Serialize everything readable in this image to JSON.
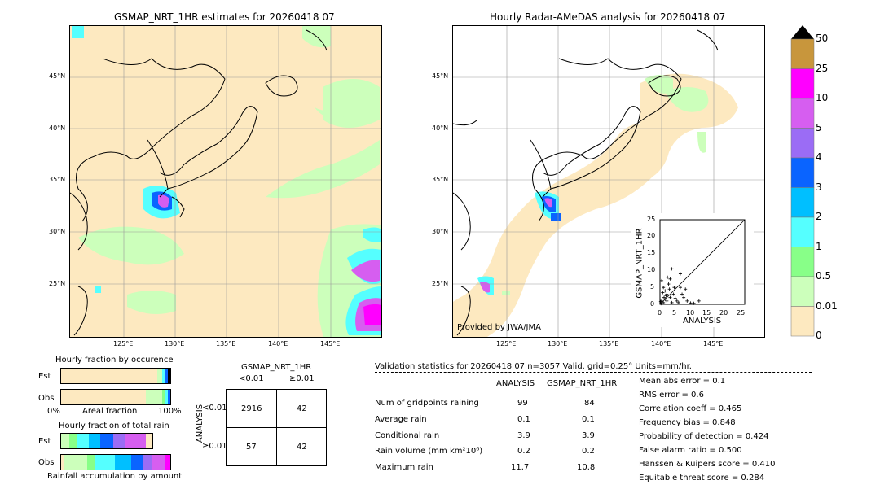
{
  "left_map": {
    "title": "GSMAP_NRT_1HR estimates for 20260418 07",
    "lat_labels": [
      "45°N",
      "40°N",
      "35°N",
      "30°N",
      "25°N"
    ],
    "lon_labels": [
      "125°E",
      "130°E",
      "135°E",
      "140°E",
      "145°E"
    ]
  },
  "right_map": {
    "title": "Hourly Radar-AMeDAS analysis for 20260418 07",
    "lat_labels": [
      "45°N",
      "40°N",
      "35°N",
      "30°N",
      "25°N"
    ],
    "lon_labels": [
      "125°E",
      "130°E",
      "135°E",
      "140°E",
      "145°E"
    ],
    "provided_by": "Provided by JWA/JMA"
  },
  "colorbar": {
    "levels": [
      "50",
      "25",
      "10",
      "5",
      "4",
      "3",
      "2",
      "1",
      "0.5",
      "0.01",
      "0"
    ],
    "colors": [
      "#c8963c",
      "#ff00ff",
      "#d65ef0",
      "#9b6cf5",
      "#0a64ff",
      "#00bfff",
      "#55ffff",
      "#88ff88",
      "#ccffbb",
      "#fde9c0"
    ]
  },
  "scatter": {
    "xlabel": "ANALYSIS",
    "ylabel": "GSMAP_NRT_1HR",
    "ticks": [
      "0",
      "5",
      "10",
      "15",
      "20",
      "25"
    ]
  },
  "fraction_occurrence": {
    "title": "Hourly fraction by occurence",
    "rows": [
      "Est",
      "Obs"
    ],
    "x_left": "0%",
    "x_mid": "Areal fraction",
    "x_right": "100%"
  },
  "fraction_total": {
    "title": "Hourly fraction of total rain",
    "rows": [
      "Est",
      "Obs"
    ],
    "footer": "Rainfall accumulation by amount"
  },
  "contingency": {
    "title": "GSMAP_NRT_1HR",
    "col_labels": [
      "<0.01",
      "≥0.01"
    ],
    "row_axis": "ANALYSIS",
    "row_labels": [
      "<0.01",
      "≥0.01"
    ],
    "cells": [
      [
        "2916",
        "42"
      ],
      [
        "57",
        "42"
      ]
    ]
  },
  "validation": {
    "header": "Validation statistics for 20260418 07  n=3057 Valid. grid=0.25° Units=mm/hr.",
    "col_analysis": "ANALYSIS",
    "col_gsmap": "GSMAP_NRT_1HR",
    "rows": [
      {
        "label": "Num of gridpoints raining",
        "analysis": "99",
        "gsmap": "84"
      },
      {
        "label": "Average rain",
        "analysis": "0.1",
        "gsmap": "0.1"
      },
      {
        "label": "Conditional rain",
        "analysis": "3.9",
        "gsmap": "3.9"
      },
      {
        "label": "Rain volume (mm km²10⁶)",
        "analysis": "0.2",
        "gsmap": "0.2"
      },
      {
        "label": "Maximum rain",
        "analysis": "11.7",
        "gsmap": "10.8"
      }
    ],
    "scores": [
      "Mean abs error =    0.1",
      "RMS error =    0.6",
      "Correlation coeff =  0.465",
      "Frequency bias =  0.848",
      "Probability of detection =  0.424",
      "False alarm ratio =  0.500",
      "Hanssen & Kuipers score =  0.410",
      "Equitable threat score =  0.284"
    ]
  },
  "chart_data": [
    {
      "type": "heatmap",
      "title": "GSMAP_NRT_1HR estimates for 20260418 07",
      "xlabel": "",
      "ylabel": "",
      "x_ticks": [
        "125°E",
        "130°E",
        "135°E",
        "140°E",
        "145°E"
      ],
      "y_ticks": [
        "45°N",
        "40°N",
        "35°N",
        "30°N",
        "25°N"
      ]
    },
    {
      "type": "heatmap",
      "title": "Hourly Radar-AMeDAS analysis for 20260418 07",
      "x_ticks": [
        "125°E",
        "130°E",
        "135°E",
        "140°E",
        "145°E"
      ],
      "y_ticks": [
        "45°N",
        "40°N",
        "35°N",
        "30°N",
        "25°N"
      ]
    },
    {
      "type": "scatter",
      "xlabel": "ANALYSIS",
      "ylabel": "GSMAP_NRT_1HR",
      "xlim": [
        0,
        25
      ],
      "ylim": [
        0,
        25
      ],
      "points": [
        [
          0.3,
          0.2
        ],
        [
          0.5,
          1.0
        ],
        [
          1,
          0.5
        ],
        [
          1.2,
          2
        ],
        [
          1.5,
          4
        ],
        [
          2,
          1
        ],
        [
          2,
          3
        ],
        [
          2.5,
          6
        ],
        [
          3,
          2
        ],
        [
          3,
          7.5
        ],
        [
          3.5,
          0.5
        ],
        [
          4,
          3
        ],
        [
          4.2,
          5
        ],
        [
          5,
          1
        ],
        [
          5.5,
          0.5
        ],
        [
          6,
          9
        ],
        [
          6.5,
          3
        ],
        [
          7,
          2
        ],
        [
          8,
          1
        ],
        [
          9,
          0.4
        ],
        [
          10,
          0.3
        ],
        [
          11.5,
          1
        ],
        [
          0.8,
          3.5
        ],
        [
          1.8,
          2.5
        ],
        [
          2.2,
          8
        ],
        [
          0.5,
          7
        ],
        [
          1,
          5
        ],
        [
          3.5,
          10.5
        ],
        [
          1.5,
          1.5
        ],
        [
          0.2,
          0.8
        ],
        [
          4.5,
          1.8
        ],
        [
          6,
          5
        ],
        [
          7.5,
          4.5
        ],
        [
          2.8,
          4.5
        ]
      ]
    }
  ]
}
